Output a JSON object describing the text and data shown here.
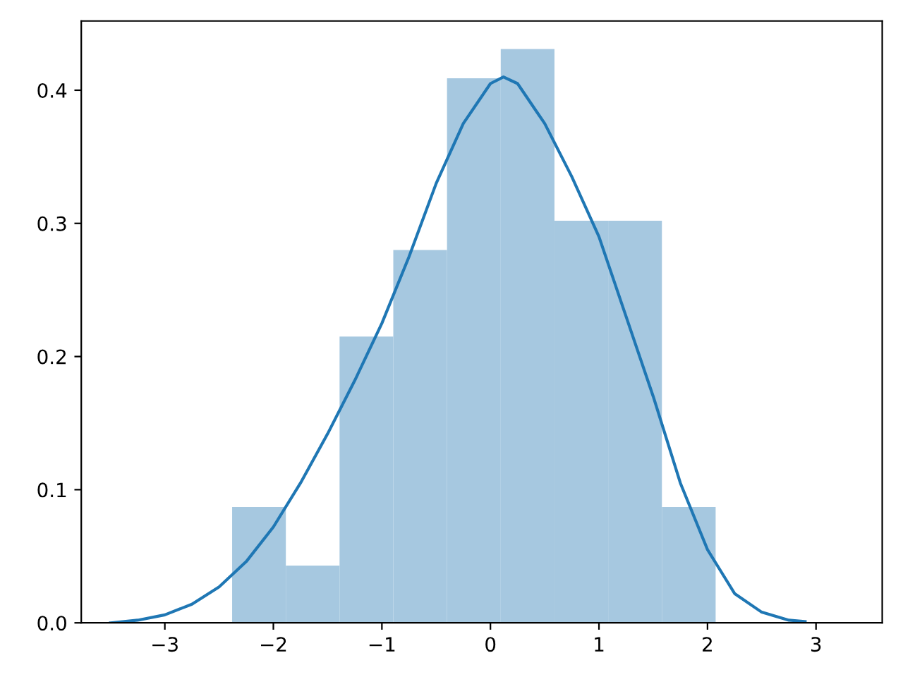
{
  "chart_data": {
    "type": "histogram",
    "series": [
      {
        "color": "#a6c8e0",
        "bins": [
          -2.38,
          -1.885,
          -1.39,
          -0.895,
          -0.4,
          0.095,
          0.59,
          1.085,
          1.58,
          2.075
        ],
        "values": [
          0.087,
          0.043,
          0.215,
          0.28,
          0.409,
          0.431,
          0.302,
          0.302,
          0.087
        ]
      },
      {
        "type": "line",
        "color": "#1f77b4",
        "x": [
          -3.5,
          -3.25,
          -3.0,
          -2.75,
          -2.5,
          -2.25,
          -2.0,
          -1.75,
          -1.5,
          -1.25,
          -1.0,
          -0.75,
          -0.5,
          -0.25,
          0.0,
          0.12,
          0.25,
          0.5,
          0.75,
          1.0,
          1.25,
          1.5,
          1.75,
          2.0,
          2.25,
          2.5,
          2.75,
          2.9
        ],
        "values": [
          0.0,
          0.002,
          0.006,
          0.014,
          0.027,
          0.046,
          0.072,
          0.105,
          0.142,
          0.182,
          0.225,
          0.275,
          0.33,
          0.375,
          0.405,
          0.41,
          0.405,
          0.375,
          0.335,
          0.29,
          0.23,
          0.17,
          0.105,
          0.055,
          0.022,
          0.008,
          0.002,
          0.001
        ]
      }
    ],
    "xlim": [
      -3.77,
      3.61
    ],
    "ylim": [
      0,
      0.452
    ],
    "xticks": [
      {
        "value": -3,
        "label": "−3"
      },
      {
        "value": -2,
        "label": "−2"
      },
      {
        "value": -1,
        "label": "−1"
      },
      0,
      1,
      2,
      3
    ],
    "yticks": [
      {
        "value": 0,
        "label": "0.0"
      },
      0.1,
      0.2,
      0.3,
      0.4
    ],
    "grid": false
  }
}
